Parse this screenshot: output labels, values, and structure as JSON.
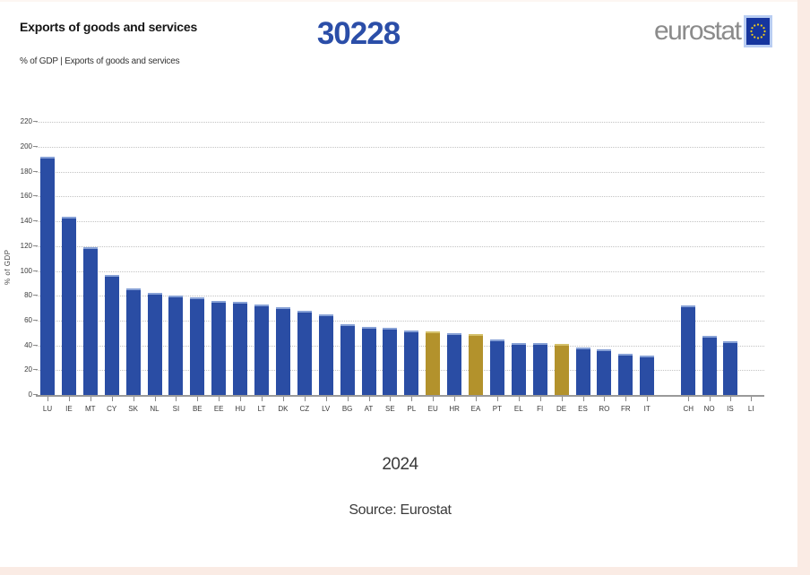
{
  "header": {
    "title": "Exports of goods and services",
    "subtitle": "% of GDP | Exports of goods and services",
    "overlay_number": "30228",
    "logo_text": "eurostat"
  },
  "footer": {
    "year": "2024",
    "source": "Source: Eurostat"
  },
  "chart_data": {
    "type": "bar",
    "title": "Exports of goods and services",
    "subtitle": "% of GDP | Exports of goods and services",
    "ylabel": "% of GDP",
    "xlabel": "2024",
    "ylim": [
      0,
      220
    ],
    "ytick_step": 20,
    "grid": "horizontal-dotted",
    "legend": "none",
    "bar_color": "#2a4da4",
    "highlight_color": "#b3922c",
    "highlighted": [
      "EU",
      "EA",
      "DE"
    ],
    "group_break_after": "IT",
    "categories": [
      "LU",
      "IE",
      "MT",
      "CY",
      "SK",
      "NL",
      "SI",
      "BE",
      "EE",
      "HU",
      "LT",
      "DK",
      "CZ",
      "LV",
      "BG",
      "AT",
      "SE",
      "PL",
      "EU",
      "HR",
      "EA",
      "PT",
      "EL",
      "FI",
      "DE",
      "ES",
      "RO",
      "FR",
      "IT",
      "CH",
      "NO",
      "IS",
      "LI"
    ],
    "values": [
      192,
      144,
      119,
      97,
      86,
      82,
      80,
      79,
      76,
      75,
      73,
      71,
      68,
      65,
      57,
      55,
      54,
      52,
      51,
      50,
      49,
      45,
      42,
      42,
      41,
      38,
      37,
      33,
      32,
      72,
      48,
      43,
      null
    ]
  }
}
